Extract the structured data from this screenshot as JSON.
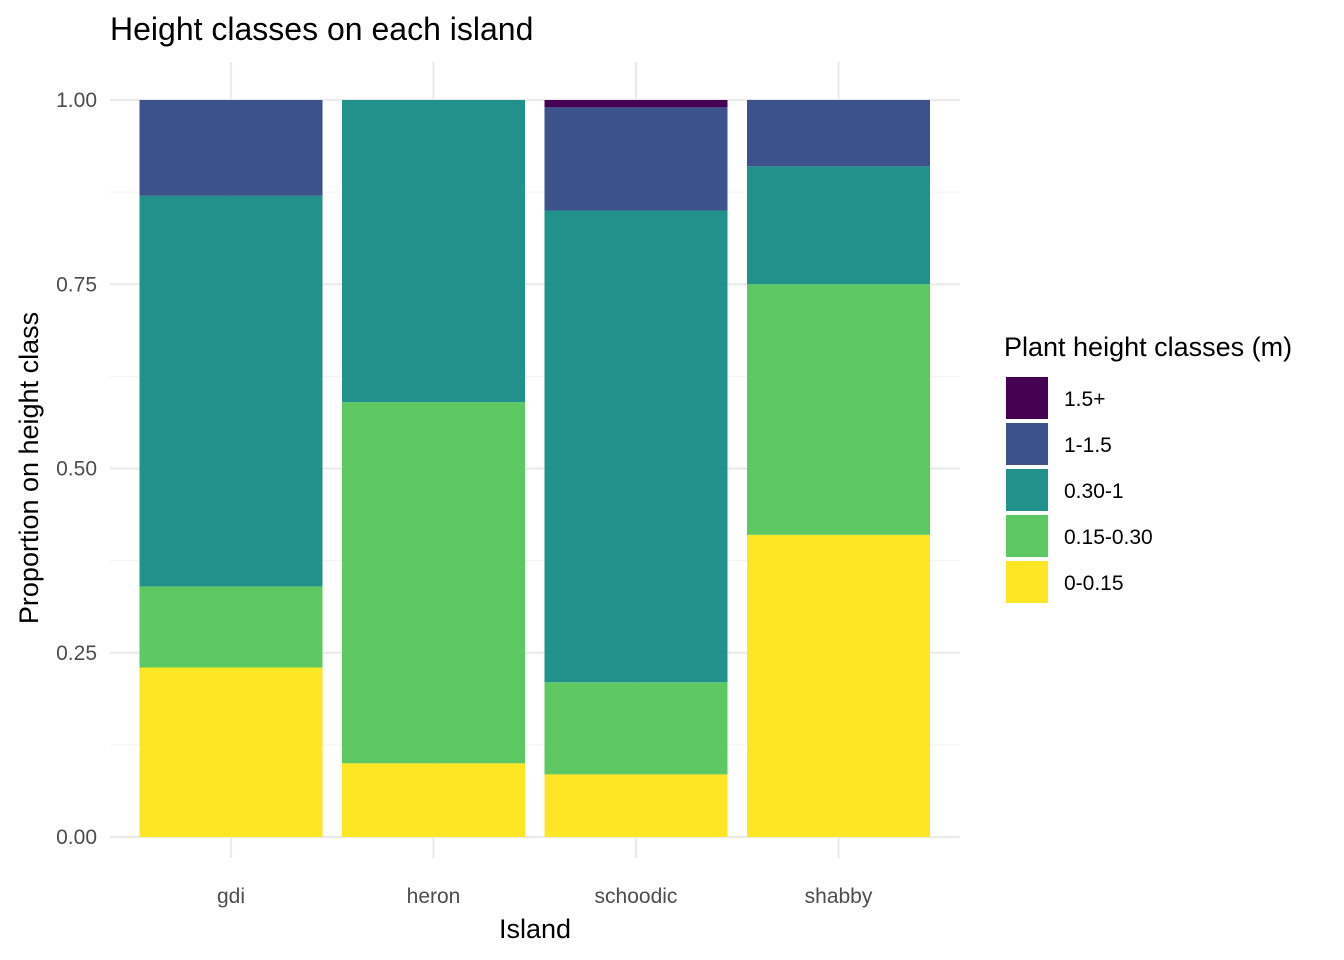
{
  "chart_data": {
    "type": "bar",
    "stacked": true,
    "title": "Height classes on each island",
    "xlabel": "Island",
    "ylabel": "Proportion on height class",
    "ylim": [
      0,
      1
    ],
    "y_ticks": [
      "0.00",
      "0.25",
      "0.50",
      "0.75",
      "1.00"
    ],
    "grid": true,
    "legend_position": "right",
    "legend_title": "Plant height classes (m)",
    "categories": [
      "gdi",
      "heron",
      "schoodic",
      "shabby"
    ],
    "series": [
      {
        "name": "0-0.15",
        "color": "#fde725",
        "values": [
          0.23,
          0.1,
          0.085,
          0.41
        ]
      },
      {
        "name": "0.15-0.30",
        "color": "#5ec962",
        "values": [
          0.11,
          0.49,
          0.125,
          0.34
        ]
      },
      {
        "name": "0.30-1",
        "color": "#21918c",
        "values": [
          0.53,
          0.41,
          0.64,
          0.16
        ]
      },
      {
        "name": "1-1.5",
        "color": "#3b528b",
        "values": [
          0.13,
          0.0,
          0.14,
          0.09
        ]
      },
      {
        "name": "1.5+",
        "color": "#440154",
        "values": [
          0.0,
          0.0,
          0.01,
          0.0
        ]
      }
    ],
    "legend_order": [
      "1.5+",
      "1-1.5",
      "0.30-1",
      "0.15-0.30",
      "0-0.15"
    ]
  }
}
